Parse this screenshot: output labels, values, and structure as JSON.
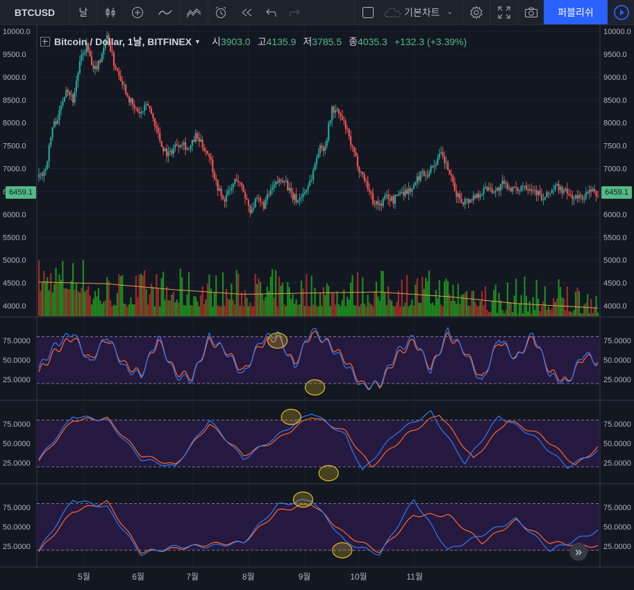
{
  "toolbar": {
    "symbol": "BTCUSD",
    "interval": "날",
    "chart_style": "기본차트",
    "publish": "퍼블리쉬"
  },
  "icons": [
    "candles-icon",
    "add-indicator-icon",
    "compare-icon",
    "indicators-icon",
    "alert-icon",
    "replay-icon",
    "undo-icon",
    "redo-icon",
    "layout-icon",
    "cloud-icon",
    "settings-icon",
    "fullscreen-icon",
    "snapshot-icon",
    "play-icon"
  ],
  "legend": {
    "title": "Bitcoin / Dollar, 1날, BITFINEX",
    "open_label": "시",
    "open": "3903.0",
    "high_label": "고",
    "high": "4135.9",
    "low_label": "저",
    "low": "3785.5",
    "close_label": "종",
    "close": "4035.3",
    "change": "+132.3 (+3.39%)"
  },
  "price_tag": "6459.1",
  "colors": {
    "up": "#26a69a",
    "down": "#ef5350",
    "vol_up": "#1e8c1e",
    "vol_down": "#a12a2a",
    "osc_bg": "#2a1a44",
    "blue": "#2f7bf5",
    "orange": "#ff6a2b",
    "highlight": "#e0c020"
  },
  "chart_data": {
    "type": "candlestick",
    "price_axis": {
      "ticks": [
        "10000.0",
        "9500.0",
        "9000.0",
        "8500.0",
        "8000.0",
        "7500.0",
        "7000.0",
        "6500.0",
        "6000.0",
        "5500.0",
        "5000.0",
        "4500.0",
        "4000.0"
      ]
    },
    "months": [
      "5월",
      "6월",
      "7월",
      "8월",
      "9월",
      "10월",
      "11월"
    ],
    "price_path": [
      [
        0,
        6800
      ],
      [
        4,
        7000
      ],
      [
        8,
        7900
      ],
      [
        12,
        8200
      ],
      [
        16,
        8800
      ],
      [
        20,
        8500
      ],
      [
        24,
        9300
      ],
      [
        28,
        9700
      ],
      [
        32,
        9100
      ],
      [
        36,
        9400
      ],
      [
        40,
        9900
      ],
      [
        44,
        9300
      ],
      [
        48,
        9000
      ],
      [
        52,
        8600
      ],
      [
        56,
        8300
      ],
      [
        60,
        8200
      ],
      [
        64,
        8400
      ],
      [
        68,
        8000
      ],
      [
        72,
        7500
      ],
      [
        76,
        7300
      ],
      [
        80,
        7500
      ],
      [
        84,
        7600
      ],
      [
        88,
        7400
      ],
      [
        92,
        7700
      ],
      [
        96,
        7500
      ],
      [
        100,
        7300
      ],
      [
        104,
        6700
      ],
      [
        108,
        6300
      ],
      [
        112,
        6500
      ],
      [
        116,
        6800
      ],
      [
        120,
        6500
      ],
      [
        124,
        6100
      ],
      [
        128,
        6300
      ],
      [
        132,
        6200
      ],
      [
        136,
        6500
      ],
      [
        140,
        6700
      ],
      [
        144,
        6800
      ],
      [
        148,
        6400
      ],
      [
        152,
        6300
      ],
      [
        156,
        6500
      ],
      [
        160,
        6800
      ],
      [
        164,
        7400
      ],
      [
        168,
        7500
      ],
      [
        172,
        8300
      ],
      [
        176,
        8200
      ],
      [
        180,
        7900
      ],
      [
        184,
        7400
      ],
      [
        188,
        7000
      ],
      [
        192,
        6700
      ],
      [
        196,
        6300
      ],
      [
        200,
        6200
      ],
      [
        204,
        6400
      ],
      [
        208,
        6300
      ],
      [
        212,
        6500
      ],
      [
        216,
        6500
      ],
      [
        220,
        6600
      ],
      [
        224,
        6900
      ],
      [
        228,
        6900
      ],
      [
        232,
        7100
      ],
      [
        236,
        7300
      ],
      [
        240,
        7000
      ],
      [
        244,
        6500
      ],
      [
        248,
        6300
      ],
      [
        252,
        6300
      ],
      [
        256,
        6400
      ],
      [
        260,
        6500
      ],
      [
        264,
        6600
      ],
      [
        268,
        6500
      ],
      [
        272,
        6650
      ],
      [
        276,
        6600
      ],
      [
        280,
        6500
      ],
      [
        284,
        6650
      ],
      [
        288,
        6600
      ],
      [
        292,
        6500
      ],
      [
        296,
        6300
      ],
      [
        300,
        6500
      ],
      [
        304,
        6600
      ],
      [
        308,
        6500
      ],
      [
        312,
        6400
      ],
      [
        316,
        6350
      ],
      [
        320,
        6400
      ],
      [
        324,
        6500
      ],
      [
        328,
        6400
      ]
    ],
    "volume_ma_path": [
      [
        0,
        4520
      ],
      [
        40,
        4480
      ],
      [
        80,
        4350
      ],
      [
        120,
        4250
      ],
      [
        160,
        4280
      ],
      [
        200,
        4300
      ],
      [
        240,
        4200
      ],
      [
        280,
        4050
      ],
      [
        328,
        3950
      ]
    ],
    "stoch_axis": {
      "ticks": [
        "75.0000",
        "50.0000",
        "25.0000"
      ]
    },
    "stoch1": {
      "blue": [
        [
          0,
          40
        ],
        [
          10,
          70
        ],
        [
          20,
          86
        ],
        [
          30,
          45
        ],
        [
          40,
          82
        ],
        [
          50,
          40
        ],
        [
          60,
          30
        ],
        [
          70,
          80
        ],
        [
          80,
          30
        ],
        [
          90,
          25
        ],
        [
          100,
          80
        ],
        [
          110,
          60
        ],
        [
          120,
          30
        ],
        [
          130,
          75
        ],
        [
          140,
          85
        ],
        [
          150,
          40
        ],
        [
          160,
          90
        ],
        [
          170,
          70
        ],
        [
          180,
          45
        ],
        [
          190,
          15
        ],
        [
          200,
          20
        ],
        [
          210,
          60
        ],
        [
          220,
          80
        ],
        [
          230,
          35
        ],
        [
          240,
          88
        ],
        [
          250,
          60
        ],
        [
          260,
          20
        ],
        [
          270,
          80
        ],
        [
          280,
          50
        ],
        [
          290,
          85
        ],
        [
          300,
          30
        ],
        [
          310,
          20
        ],
        [
          320,
          60
        ],
        [
          328,
          45
        ]
      ],
      "orange": [
        [
          0,
          35
        ],
        [
          10,
          62
        ],
        [
          20,
          80
        ],
        [
          30,
          50
        ],
        [
          40,
          78
        ],
        [
          50,
          45
        ],
        [
          60,
          32
        ],
        [
          70,
          75
        ],
        [
          80,
          35
        ],
        [
          90,
          28
        ],
        [
          100,
          75
        ],
        [
          110,
          62
        ],
        [
          120,
          35
        ],
        [
          130,
          70
        ],
        [
          140,
          80
        ],
        [
          150,
          45
        ],
        [
          160,
          85
        ],
        [
          170,
          72
        ],
        [
          180,
          50
        ],
        [
          190,
          18
        ],
        [
          200,
          18
        ],
        [
          210,
          55
        ],
        [
          220,
          75
        ],
        [
          230,
          40
        ],
        [
          240,
          82
        ],
        [
          250,
          62
        ],
        [
          260,
          25
        ],
        [
          270,
          75
        ],
        [
          280,
          52
        ],
        [
          290,
          80
        ],
        [
          300,
          35
        ],
        [
          310,
          22
        ],
        [
          320,
          55
        ],
        [
          328,
          48
        ]
      ]
    },
    "stoch2": {
      "blue": [
        [
          0,
          30
        ],
        [
          20,
          85
        ],
        [
          40,
          80
        ],
        [
          60,
          30
        ],
        [
          80,
          20
        ],
        [
          100,
          80
        ],
        [
          120,
          30
        ],
        [
          140,
          60
        ],
        [
          160,
          90
        ],
        [
          180,
          60
        ],
        [
          190,
          15
        ],
        [
          210,
          65
        ],
        [
          230,
          90
        ],
        [
          250,
          25
        ],
        [
          270,
          85
        ],
        [
          290,
          60
        ],
        [
          310,
          20
        ],
        [
          328,
          40
        ]
      ],
      "orange": [
        [
          0,
          28
        ],
        [
          20,
          80
        ],
        [
          40,
          82
        ],
        [
          60,
          35
        ],
        [
          80,
          22
        ],
        [
          100,
          75
        ],
        [
          120,
          35
        ],
        [
          140,
          55
        ],
        [
          160,
          85
        ],
        [
          180,
          65
        ],
        [
          195,
          20
        ],
        [
          215,
          60
        ],
        [
          235,
          88
        ],
        [
          255,
          30
        ],
        [
          275,
          80
        ],
        [
          295,
          60
        ],
        [
          315,
          22
        ],
        [
          328,
          45
        ]
      ]
    },
    "stoch3": {
      "blue": [
        [
          0,
          20
        ],
        [
          20,
          85
        ],
        [
          40,
          75
        ],
        [
          60,
          15
        ],
        [
          80,
          25
        ],
        [
          100,
          25
        ],
        [
          120,
          30
        ],
        [
          140,
          78
        ],
        [
          160,
          85
        ],
        [
          180,
          30
        ],
        [
          200,
          15
        ],
        [
          220,
          85
        ],
        [
          240,
          20
        ],
        [
          260,
          40
        ],
        [
          280,
          60
        ],
        [
          300,
          20
        ],
        [
          328,
          45
        ]
      ],
      "orange": [
        [
          0,
          18
        ],
        [
          20,
          70
        ],
        [
          40,
          82
        ],
        [
          60,
          18
        ],
        [
          80,
          22
        ],
        [
          100,
          28
        ],
        [
          120,
          30
        ],
        [
          140,
          70
        ],
        [
          160,
          80
        ],
        [
          180,
          40
        ],
        [
          200,
          18
        ],
        [
          220,
          65
        ],
        [
          240,
          65
        ],
        [
          260,
          30
        ],
        [
          280,
          58
        ],
        [
          300,
          30
        ],
        [
          328,
          25
        ]
      ]
    },
    "highlights": [
      [
        0,
        140,
        75
      ],
      [
        0,
        162,
        15
      ],
      [
        1,
        148,
        84
      ],
      [
        1,
        170,
        12
      ],
      [
        2,
        155,
        85
      ],
      [
        2,
        178,
        20
      ]
    ]
  }
}
